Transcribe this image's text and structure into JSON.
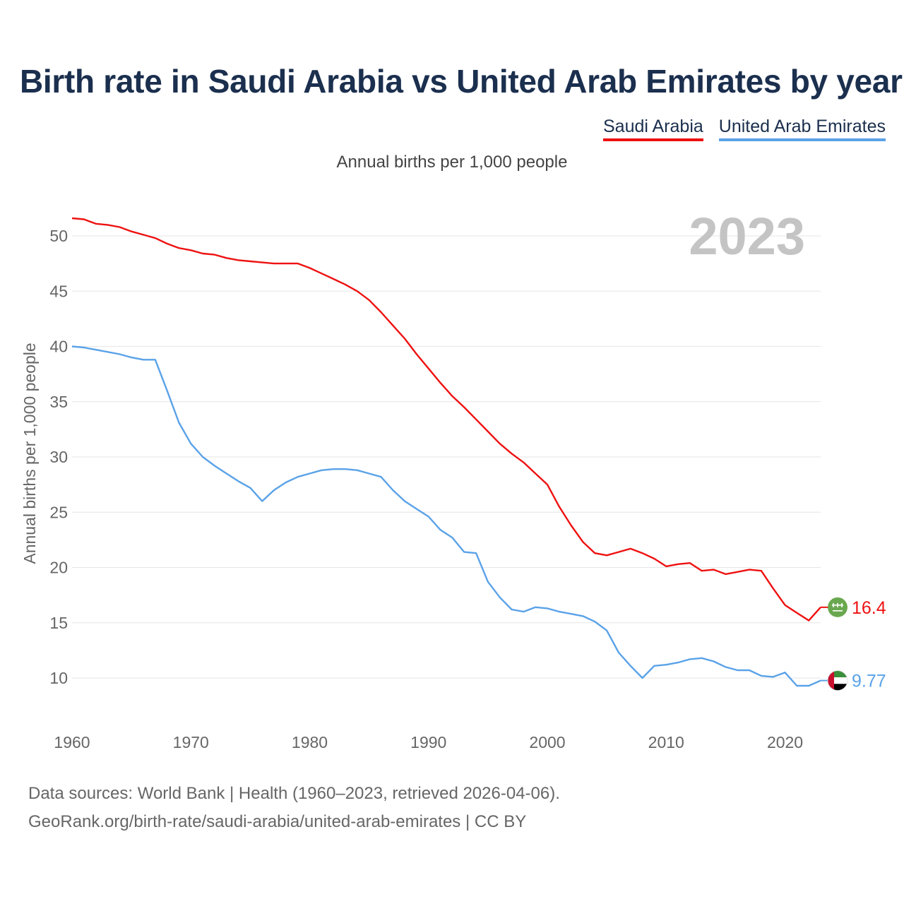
{
  "title": "Birth rate in Saudi Arabia vs United Arab Emirates by year",
  "legend": [
    {
      "name": "Saudi Arabia",
      "color": "#ee1111"
    },
    {
      "name": "United Arab Emirates",
      "color": "#5aa2e8"
    }
  ],
  "subtitle": "Annual births per 1,000 people",
  "year_watermark": "2023",
  "source": {
    "line1": "Data sources: World Bank | Health (1960–2023, retrieved 2026-04-06).",
    "line2": "GeoRank.org/birth-rate/saudi-arabia/united-arab-emirates | CC BY"
  },
  "chart_data": {
    "type": "line",
    "title": "Birth rate in Saudi Arabia vs United Arab Emirates by year",
    "xlabel": "",
    "ylabel": "Annual births per 1,000 people",
    "xlim": [
      1960,
      2023
    ],
    "ylim": [
      6.5,
      53
    ],
    "x_ticks": [
      1960,
      1970,
      1980,
      1990,
      2000,
      2010,
      2020
    ],
    "y_ticks": [
      10,
      15,
      20,
      25,
      30,
      35,
      40,
      45,
      50
    ],
    "x": [
      1960,
      1961,
      1962,
      1963,
      1964,
      1965,
      1966,
      1967,
      1968,
      1969,
      1970,
      1971,
      1972,
      1973,
      1974,
      1975,
      1976,
      1977,
      1978,
      1979,
      1980,
      1981,
      1982,
      1983,
      1984,
      1985,
      1986,
      1987,
      1988,
      1989,
      1990,
      1991,
      1992,
      1993,
      1994,
      1995,
      1996,
      1997,
      1998,
      1999,
      2000,
      2001,
      2002,
      2003,
      2004,
      2005,
      2006,
      2007,
      2008,
      2009,
      2010,
      2011,
      2012,
      2013,
      2014,
      2015,
      2016,
      2017,
      2018,
      2019,
      2020,
      2021,
      2022,
      2023
    ],
    "series": [
      {
        "name": "Saudi Arabia",
        "color": "#ee1111",
        "end_label": "16.4",
        "values": [
          51.6,
          51.5,
          51.1,
          51.0,
          50.8,
          50.4,
          50.1,
          49.8,
          49.3,
          48.9,
          48.7,
          48.4,
          48.3,
          48.0,
          47.8,
          47.7,
          47.6,
          47.5,
          47.5,
          47.5,
          47.1,
          46.6,
          46.1,
          45.6,
          45.0,
          44.2,
          43.1,
          41.9,
          40.7,
          39.3,
          38.0,
          36.7,
          35.5,
          34.5,
          33.4,
          32.3,
          31.2,
          30.3,
          29.5,
          28.5,
          27.5,
          25.5,
          23.8,
          22.3,
          21.3,
          21.1,
          21.4,
          21.7,
          21.3,
          20.8,
          20.1,
          20.3,
          20.4,
          19.7,
          19.8,
          19.4,
          19.6,
          19.8,
          19.7,
          18.1,
          16.6,
          15.9,
          15.2,
          16.4
        ]
      },
      {
        "name": "United Arab Emirates",
        "color": "#5aa2e8",
        "end_label": "9.77",
        "values": [
          40.0,
          39.9,
          39.7,
          39.5,
          39.3,
          39.0,
          38.8,
          38.8,
          36.0,
          33.1,
          31.2,
          30.0,
          29.2,
          28.5,
          27.8,
          27.2,
          26.0,
          27.0,
          27.7,
          28.2,
          28.5,
          28.8,
          28.9,
          28.9,
          28.8,
          28.5,
          28.2,
          27.0,
          26.0,
          25.3,
          24.6,
          23.4,
          22.7,
          21.4,
          21.3,
          18.7,
          17.3,
          16.2,
          16.0,
          16.4,
          16.3,
          16.0,
          15.8,
          15.6,
          15.1,
          14.3,
          12.3,
          11.1,
          10.0,
          11.1,
          11.2,
          11.4,
          11.7,
          11.8,
          11.5,
          11.0,
          10.7,
          10.7,
          10.2,
          10.1,
          10.5,
          9.3,
          9.3,
          9.77
        ]
      }
    ]
  }
}
